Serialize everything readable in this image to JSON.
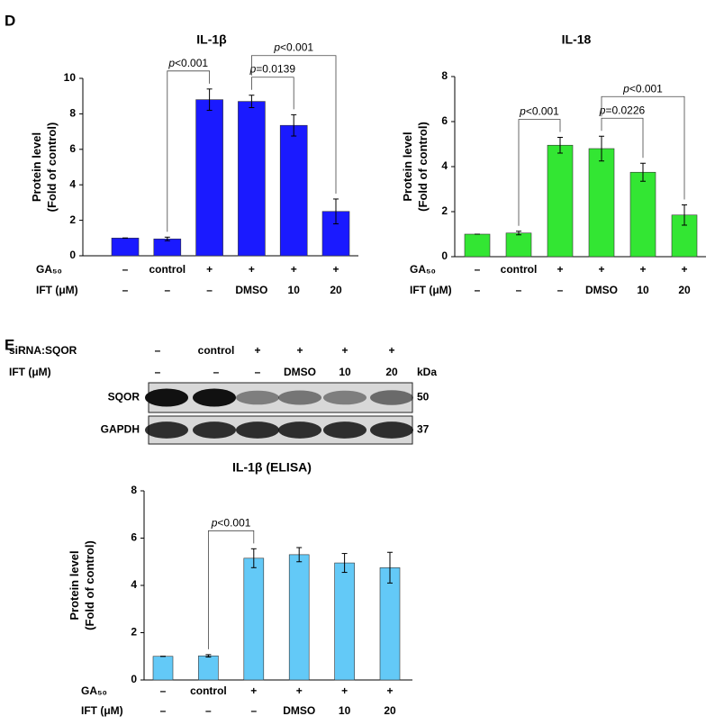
{
  "panel_labels": [
    "D",
    "E"
  ],
  "chart_data": [
    {
      "type": "bar",
      "title": "IL-1β",
      "ylabel": [
        "Protein level",
        "(Fold of control)"
      ],
      "color": "#1a1aff",
      "values": [
        1,
        0.95,
        8.8,
        8.7,
        7.35,
        2.5
      ],
      "errors": [
        0,
        0.1,
        0.6,
        0.35,
        0.6,
        0.7
      ],
      "ylim": [
        0,
        10
      ],
      "yticks": [
        0,
        2,
        4,
        6,
        8,
        10
      ],
      "rows": [
        {
          "label": "GA₅₀",
          "values": [
            "–",
            "control",
            "+",
            "+",
            "+",
            "+"
          ]
        },
        {
          "label": "IFT (μM)",
          "values": [
            "–",
            "–",
            "–",
            "DMSO",
            "10",
            "20"
          ]
        }
      ],
      "annotations": [
        {
          "text": "p<0.001",
          "between": [
            1,
            2
          ]
        },
        {
          "text": "p=0.0139",
          "between": [
            3,
            4
          ]
        },
        {
          "text": "p<0.001",
          "between": [
            3,
            5
          ]
        }
      ]
    },
    {
      "type": "bar",
      "title": "IL-18",
      "ylabel": [
        "Protein level",
        "(Fold of control)"
      ],
      "color": "#33e633",
      "values": [
        1,
        1.05,
        4.95,
        4.8,
        3.75,
        1.85
      ],
      "errors": [
        0,
        0.08,
        0.35,
        0.55,
        0.4,
        0.45
      ],
      "ylim": [
        0,
        8
      ],
      "yticks": [
        0,
        2,
        4,
        6,
        8
      ],
      "rows": [
        {
          "label": "GA₅₀",
          "values": [
            "–",
            "control",
            "+",
            "+",
            "+",
            "+"
          ]
        },
        {
          "label": "IFT (μM)",
          "values": [
            "–",
            "–",
            "–",
            "DMSO",
            "10",
            "20"
          ]
        }
      ],
      "annotations": [
        {
          "text": "p<0.001",
          "between": [
            1,
            2
          ]
        },
        {
          "text": "p=0.0226",
          "between": [
            3,
            4
          ]
        },
        {
          "text": "p<0.001",
          "between": [
            3,
            5
          ]
        }
      ]
    },
    {
      "type": "bar",
      "title": "IL-1β (ELISA)",
      "ylabel": [
        "Protein level",
        "(Fold of control)"
      ],
      "color": "#63c9f7",
      "values": [
        1,
        1.02,
        5.15,
        5.3,
        4.95,
        4.75
      ],
      "errors": [
        0,
        0.05,
        0.4,
        0.3,
        0.4,
        0.65
      ],
      "ylim": [
        0,
        8
      ],
      "yticks": [
        0,
        2,
        4,
        6,
        8
      ],
      "rows": [
        {
          "label": "GA₅₀",
          "values": [
            "–",
            "control",
            "+",
            "+",
            "+",
            "+"
          ]
        },
        {
          "label": "IFT (μM)",
          "values": [
            "–",
            "–",
            "–",
            "DMSO",
            "10",
            "20"
          ]
        }
      ],
      "annotations": [
        {
          "text": "p<0.001",
          "between": [
            1,
            2
          ]
        }
      ]
    }
  ],
  "blot": {
    "rows": [
      {
        "label": "siRNA:SQOR",
        "values": [
          "–",
          "control",
          "+",
          "+",
          "+",
          "+"
        ]
      },
      {
        "label": "IFT (μM)",
        "values": [
          "–",
          "–",
          "–",
          "DMSO",
          "10",
          "20"
        ]
      }
    ],
    "unit": "kDa",
    "bands": [
      {
        "label": "SQOR",
        "size": "50"
      },
      {
        "label": "GAPDH",
        "size": "37"
      }
    ]
  }
}
